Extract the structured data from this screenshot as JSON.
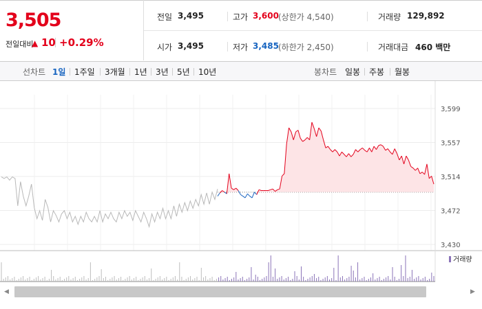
{
  "summary": {
    "current_price": "3,505",
    "change_label": "전일대비",
    "change_icon": "up-triangle-icon",
    "change_value": "10",
    "change_percent": "+0.29%",
    "up_color": "#e3001b",
    "down_color": "#1764c0",
    "prev_close_label": "전일",
    "prev_close": "3,495",
    "open_label": "시가",
    "open": "3,495",
    "high_label": "고가",
    "high": "3,600",
    "upper_limit": "(상한가 4,540)",
    "low_label": "저가",
    "low": "3,485",
    "lower_limit": "(하한가 2,450)",
    "volume_label": "거래량",
    "volume": "129,892",
    "amount_label": "거래대금",
    "amount": "460 백만"
  },
  "period_bar": {
    "line_label": "선차트",
    "line_periods": [
      "1일",
      "1주일",
      "3개월",
      "1년",
      "3년",
      "5년",
      "10년"
    ],
    "active_period": "1일",
    "candle_label": "봉차트",
    "candle_periods": [
      "일봉",
      "주봉",
      "월봉"
    ]
  },
  "chart_data": {
    "type": "line",
    "y_ticks": [
      "3,599",
      "3,557",
      "3,514",
      "3,472",
      "3,430"
    ],
    "ylim": [
      3430,
      3599
    ],
    "reference_price": 3495,
    "grid": true,
    "legend": "거래량",
    "volume_color": "#8a73b8",
    "previous_day_color": "#b8b8b8",
    "previous_day": [
      3514,
      3512,
      3514,
      3510,
      3514,
      3512,
      3478,
      3508,
      3490,
      3478,
      3490,
      3505,
      3476,
      3462,
      3472,
      3460,
      3486,
      3476,
      3458,
      3472,
      3466,
      3458,
      3468,
      3472,
      3462,
      3470,
      3458,
      3465,
      3455,
      3465,
      3458,
      3470,
      3462,
      3458,
      3465,
      3458,
      3472,
      3458,
      3468,
      3462,
      3470,
      3462,
      3458,
      3470,
      3462,
      3472,
      3465,
      3470,
      3460,
      3472,
      3465,
      3458,
      3470,
      3462,
      3452,
      3468,
      3458,
      3470,
      3462,
      3475,
      3462,
      3472,
      3462,
      3478,
      3465,
      3480,
      3470,
      3482,
      3472,
      3484,
      3475,
      3486,
      3478,
      3492,
      3480,
      3494,
      3480,
      3495,
      3486,
      3499
    ],
    "current_day": [
      3490,
      3494,
      3497,
      3495,
      3493,
      3518,
      3500,
      3498,
      3500,
      3497,
      3492,
      3490,
      3488,
      3493,
      3490,
      3488,
      3495,
      3492,
      3498,
      3497,
      3497,
      3497,
      3497,
      3498,
      3499,
      3496,
      3498,
      3499,
      3515,
      3518,
      3555,
      3575,
      3570,
      3560,
      3570,
      3572,
      3562,
      3558,
      3560,
      3563,
      3560,
      3582,
      3574,
      3564,
      3575,
      3571,
      3560,
      3550,
      3552,
      3548,
      3545,
      3548,
      3545,
      3540,
      3545,
      3542,
      3539,
      3543,
      3539,
      3542,
      3548,
      3545,
      3548,
      3550,
      3547,
      3545,
      3550,
      3545,
      3552,
      3548,
      3553,
      3554,
      3552,
      3547,
      3549,
      3545,
      3542,
      3549,
      3543,
      3535,
      3540,
      3530,
      3540,
      3535,
      3527,
      3525,
      3522,
      3525,
      3518,
      3520,
      3517,
      3530,
      3512,
      3515,
      3505
    ]
  }
}
